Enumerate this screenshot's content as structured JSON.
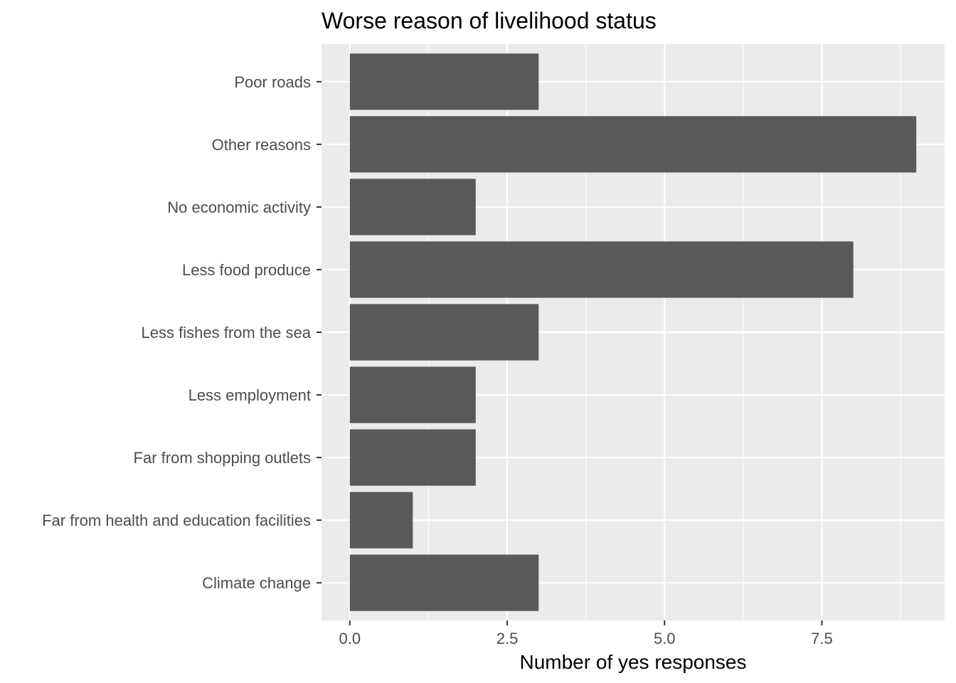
{
  "chart_data": {
    "type": "bar",
    "orientation": "horizontal",
    "title": "Worse reason of livelihood status",
    "xlabel": "Number of yes responses",
    "ylabel": "",
    "categories": [
      "Climate change",
      "Far from health and education facilities",
      "Far from shopping outlets",
      "Less employment",
      "Less fishes from the sea",
      "Less food produce",
      "No economic activity",
      "Other reasons",
      "Poor roads"
    ],
    "values": [
      3,
      1,
      2,
      2,
      3,
      8,
      2,
      9,
      3
    ],
    "xlim": [
      -0.45,
      9.45
    ],
    "x_ticks": [
      0,
      2.5,
      5,
      7.5
    ],
    "x_tick_labels": [
      "0.0",
      "2.5",
      "5.0",
      "7.5"
    ],
    "grid": true,
    "bar_color": "#595959",
    "panel_color": "#ebebeb",
    "grid_color": "#ffffff"
  }
}
